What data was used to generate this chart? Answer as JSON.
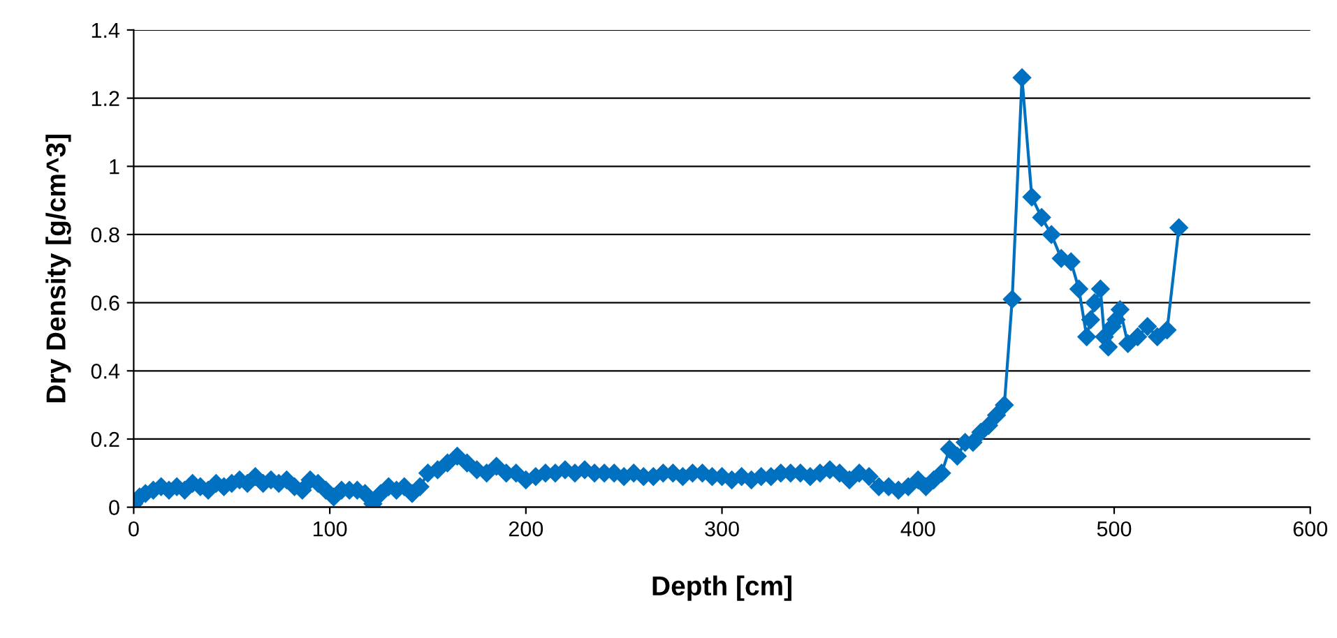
{
  "chart_data": {
    "type": "line",
    "xlabel": "Depth [cm]",
    "ylabel": "Dry Density [g/cm^3]",
    "x": [
      0,
      3,
      6,
      10,
      14,
      18,
      22,
      26,
      30,
      34,
      38,
      42,
      46,
      50,
      54,
      58,
      62,
      66,
      70,
      74,
      78,
      82,
      86,
      90,
      94,
      98,
      102,
      106,
      110,
      114,
      118,
      122,
      126,
      130,
      134,
      138,
      142,
      146,
      150,
      155,
      160,
      165,
      170,
      175,
      180,
      185,
      190,
      195,
      200,
      205,
      210,
      215,
      220,
      225,
      230,
      235,
      240,
      245,
      250,
      255,
      260,
      265,
      270,
      275,
      280,
      285,
      290,
      295,
      300,
      305,
      310,
      315,
      320,
      325,
      330,
      335,
      340,
      345,
      350,
      355,
      360,
      365,
      370,
      375,
      380,
      385,
      390,
      395,
      400,
      404,
      408,
      412,
      416,
      420,
      424,
      428,
      432,
      436,
      440,
      444,
      448,
      453,
      458,
      463,
      468,
      473,
      478,
      482,
      486,
      488,
      490,
      493,
      495,
      497,
      499,
      501,
      503,
      507,
      512,
      517,
      522,
      527,
      533
    ],
    "series": [
      {
        "color": "#0070c0",
        "values": [
          0.01,
          0.03,
          0.04,
          0.05,
          0.06,
          0.05,
          0.06,
          0.05,
          0.07,
          0.06,
          0.05,
          0.07,
          0.06,
          0.07,
          0.08,
          0.07,
          0.09,
          0.07,
          0.08,
          0.07,
          0.08,
          0.06,
          0.05,
          0.08,
          0.07,
          0.05,
          0.03,
          0.05,
          0.05,
          0.05,
          0.04,
          0.01,
          0.04,
          0.06,
          0.05,
          0.06,
          0.04,
          0.06,
          0.1,
          0.11,
          0.13,
          0.15,
          0.13,
          0.11,
          0.1,
          0.12,
          0.1,
          0.1,
          0.08,
          0.09,
          0.1,
          0.1,
          0.11,
          0.1,
          0.11,
          0.1,
          0.1,
          0.1,
          0.09,
          0.1,
          0.09,
          0.09,
          0.1,
          0.1,
          0.09,
          0.1,
          0.1,
          0.09,
          0.09,
          0.08,
          0.09,
          0.08,
          0.09,
          0.09,
          0.1,
          0.1,
          0.1,
          0.09,
          0.1,
          0.11,
          0.1,
          0.08,
          0.1,
          0.09,
          0.06,
          0.06,
          0.05,
          0.06,
          0.08,
          0.06,
          0.08,
          0.1,
          0.17,
          0.15,
          0.19,
          0.19,
          0.22,
          0.24,
          0.27,
          0.3,
          0.61,
          1.26,
          0.91,
          0.85,
          0.8,
          0.73,
          0.72,
          0.64,
          0.5,
          0.55,
          0.6,
          0.64,
          0.5,
          0.47,
          0.53,
          0.55,
          0.58,
          0.48,
          0.5,
          0.53,
          0.5,
          0.52,
          0.82
        ]
      }
    ],
    "xlim": [
      0,
      600
    ],
    "xticks": [
      0,
      100,
      200,
      300,
      400,
      500,
      600
    ],
    "ylim": [
      0,
      1.4
    ],
    "yticks": [
      0,
      0.2,
      0.4,
      0.6,
      0.8,
      1,
      1.2,
      1.4
    ],
    "grid": "y",
    "marker": "diamond",
    "line_style": "solid",
    "legend": false
  }
}
